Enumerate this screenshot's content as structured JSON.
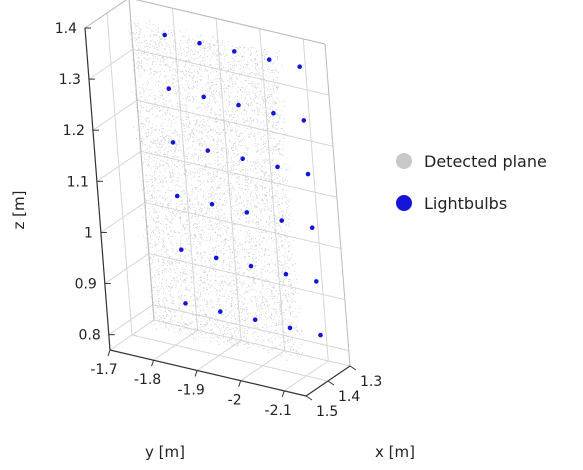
{
  "chart_data": {
    "type": "scatter",
    "projection": "3d",
    "xlabel": "x [m]",
    "ylabel": "y [m]",
    "zlabel": "z [m]",
    "x_ticks": [
      "1.3",
      "1.4",
      "1.5"
    ],
    "y_ticks": [
      "-1.7",
      "-1.8",
      "-1.9",
      "-2",
      "-2.1"
    ],
    "z_ticks": [
      "0.8",
      "0.9",
      "1",
      "1.1",
      "1.2",
      "1.3",
      "1.4"
    ],
    "xlim": [
      1.3,
      1.5
    ],
    "ylim": [
      -1.7,
      -2.15
    ],
    "zlim": [
      0.77,
      1.4
    ],
    "grid": true,
    "legend_position": "right",
    "series": [
      {
        "name": "Detected plane",
        "color": "#c8c8c8",
        "marker": "dense point cloud",
        "y_range": [
          -1.74,
          -2.08
        ],
        "z_range": [
          0.79,
          1.39
        ],
        "x_range": [
          1.36,
          1.4
        ]
      },
      {
        "name": "Lightbulbs",
        "color": "#1515d6",
        "marker": "dot",
        "columns_y": [
          -1.82,
          -1.9,
          -1.98,
          -2.06,
          -2.13
        ],
        "rows_z": [
          0.85,
          0.955,
          1.06,
          1.165,
          1.27,
          1.375
        ],
        "x": 1.38
      }
    ]
  }
}
